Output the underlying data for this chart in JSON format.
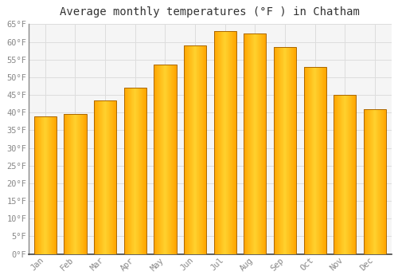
{
  "title": "Average monthly temperatures (°F ) in Chatham",
  "months": [
    "Jan",
    "Feb",
    "Mar",
    "Apr",
    "May",
    "Jun",
    "Jul",
    "Aug",
    "Sep",
    "Oct",
    "Nov",
    "Dec"
  ],
  "values": [
    39,
    39.5,
    43.5,
    47,
    53.5,
    59,
    63,
    62.5,
    58.5,
    53,
    45,
    41
  ],
  "bar_color_left": "#FFA500",
  "bar_color_center": "#FFD040",
  "bar_color_right": "#FFA500",
  "bar_edge_color": "#CC8800",
  "ylim": [
    0,
    65
  ],
  "yticks": [
    0,
    5,
    10,
    15,
    20,
    25,
    30,
    35,
    40,
    45,
    50,
    55,
    60,
    65
  ],
  "background_color": "#FFFFFF",
  "plot_bg_color": "#F5F5F5",
  "grid_color": "#DDDDDD",
  "title_fontsize": 10,
  "tick_fontsize": 7.5,
  "font_family": "monospace",
  "tick_color": "#888888"
}
